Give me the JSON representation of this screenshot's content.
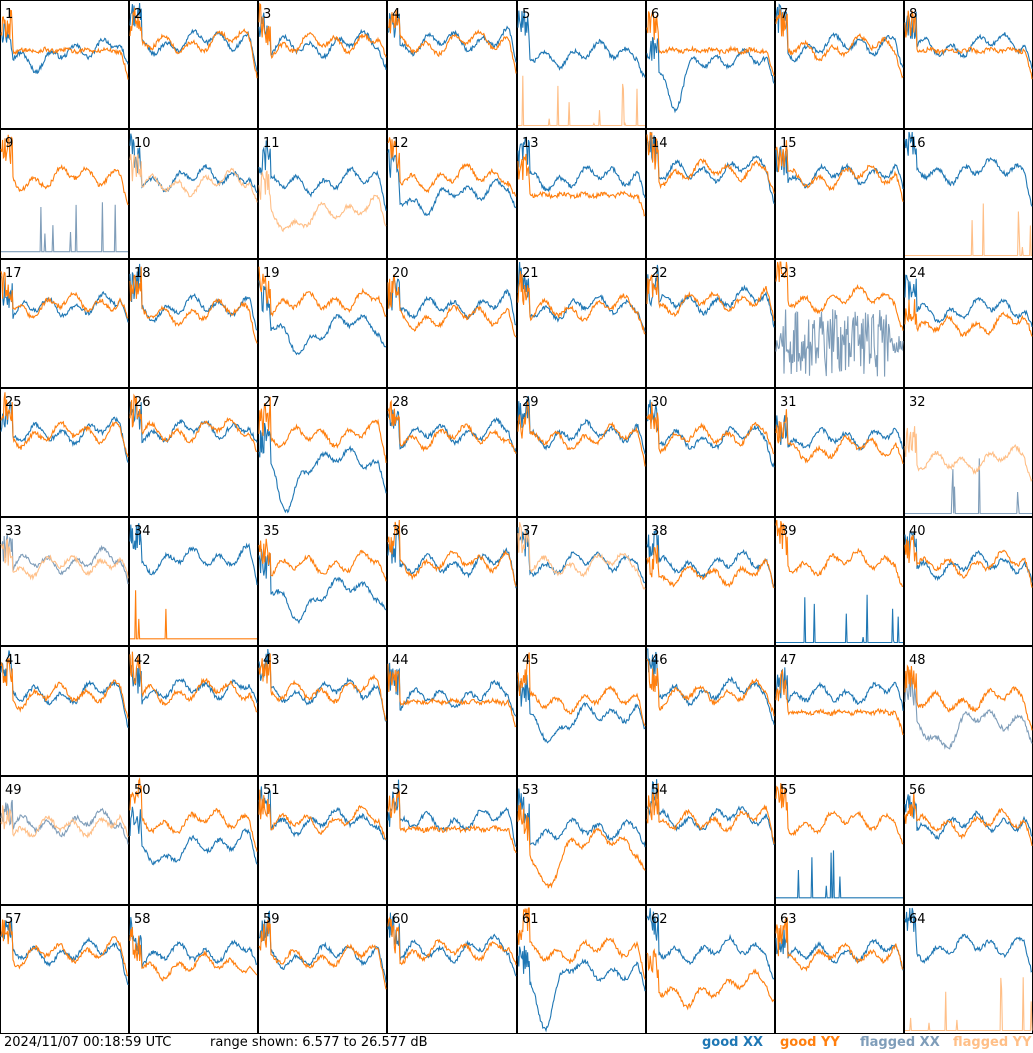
{
  "chart_data": {
    "type": "line",
    "grid_layout": {
      "rows": 8,
      "cols": 8
    },
    "timestamp": "2024/11/07 00:18:59 UTC",
    "range_text": "range shown: 6.577 to 26.577 dB",
    "ylim": [
      6.577,
      26.577
    ],
    "legend": [
      {
        "label": "good XX",
        "color": "#1f77b4"
      },
      {
        "label": "good YY",
        "color": "#ff7f0e"
      },
      {
        "label": "flagged XX",
        "color": "#7f9db9"
      },
      {
        "label": "flagged YY",
        "color": "#ffbf87"
      }
    ],
    "colors": {
      "good_xx": "#1f77b4",
      "good_yy": "#ff7f0e",
      "flagged_xx": "#7f9db9",
      "flagged_yy": "#ffbf87"
    },
    "panels": [
      {
        "label": "1",
        "xx": {
          "shape": "dip",
          "level": 0.65,
          "flag": false
        },
        "yy": {
          "shape": "flat",
          "level": 0.62,
          "flag": false
        }
      },
      {
        "label": "2",
        "xx": {
          "shape": "normal",
          "level": 0.65,
          "flag": false
        },
        "yy": {
          "shape": "normal",
          "level": 0.64,
          "flag": false
        }
      },
      {
        "label": "3",
        "xx": {
          "shape": "normal",
          "level": 0.62,
          "flag": false
        },
        "yy": {
          "shape": "normal",
          "level": 0.64,
          "flag": false
        }
      },
      {
        "label": "4",
        "xx": {
          "shape": "normal",
          "level": 0.65,
          "flag": false
        },
        "yy": {
          "shape": "normal",
          "level": 0.64,
          "flag": false
        }
      },
      {
        "label": "5",
        "xx": {
          "shape": "normal",
          "level": 0.55,
          "flag": false
        },
        "yy": {
          "shape": "spikes",
          "level": 0.02,
          "flag": true
        }
      },
      {
        "label": "6",
        "xx": {
          "shape": "deepdip",
          "level": 0.5,
          "flag": false
        },
        "yy": {
          "shape": "flat",
          "level": 0.62,
          "flag": false
        }
      },
      {
        "label": "7",
        "xx": {
          "shape": "normal",
          "level": 0.62,
          "flag": false
        },
        "yy": {
          "shape": "normal",
          "level": 0.6,
          "flag": false
        }
      },
      {
        "label": "8",
        "xx": {
          "shape": "normal",
          "level": 0.62,
          "flag": false
        },
        "yy": {
          "shape": "flat",
          "level": 0.62,
          "flag": false
        }
      },
      {
        "label": "9",
        "xx": {
          "shape": "spikes",
          "level": 0.05,
          "flag": true
        },
        "yy": {
          "shape": "normal",
          "level": 0.6,
          "flag": false
        }
      },
      {
        "label": "10",
        "xx": {
          "shape": "normal",
          "level": 0.6,
          "flag": false
        },
        "yy": {
          "shape": "normal",
          "level": 0.55,
          "flag": true
        }
      },
      {
        "label": "11",
        "xx": {
          "shape": "normal",
          "level": 0.56,
          "flag": false
        },
        "yy": {
          "shape": "dip",
          "level": 0.4,
          "flag": true
        }
      },
      {
        "label": "12",
        "xx": {
          "shape": "dip",
          "level": 0.55,
          "flag": false
        },
        "yy": {
          "shape": "normal",
          "level": 0.6,
          "flag": false
        }
      },
      {
        "label": "13",
        "xx": {
          "shape": "normal",
          "level": 0.6,
          "flag": false
        },
        "yy": {
          "shape": "flat",
          "level": 0.5,
          "flag": false
        }
      },
      {
        "label": "14",
        "xx": {
          "shape": "normal",
          "level": 0.65,
          "flag": false
        },
        "yy": {
          "shape": "normal",
          "level": 0.65,
          "flag": false
        }
      },
      {
        "label": "15",
        "xx": {
          "shape": "normal",
          "level": 0.62,
          "flag": false
        },
        "yy": {
          "shape": "normal",
          "level": 0.6,
          "flag": false
        }
      },
      {
        "label": "16",
        "xx": {
          "shape": "normal",
          "level": 0.65,
          "flag": false
        },
        "yy": {
          "shape": "spikes",
          "level": 0.02,
          "flag": true
        }
      },
      {
        "label": "17",
        "xx": {
          "shape": "normal",
          "level": 0.6,
          "flag": false
        },
        "yy": {
          "shape": "normal",
          "level": 0.62,
          "flag": false
        }
      },
      {
        "label": "18",
        "xx": {
          "shape": "normal",
          "level": 0.6,
          "flag": false
        },
        "yy": {
          "shape": "normal",
          "level": 0.55,
          "flag": false
        }
      },
      {
        "label": "19",
        "xx": {
          "shape": "dip",
          "level": 0.5,
          "flag": false
        },
        "yy": {
          "shape": "normal",
          "level": 0.64,
          "flag": false
        }
      },
      {
        "label": "20",
        "xx": {
          "shape": "normal",
          "level": 0.6,
          "flag": false
        },
        "yy": {
          "shape": "normal",
          "level": 0.52,
          "flag": false
        }
      },
      {
        "label": "21",
        "xx": {
          "shape": "normal",
          "level": 0.6,
          "flag": false
        },
        "yy": {
          "shape": "normal",
          "level": 0.58,
          "flag": false
        }
      },
      {
        "label": "22",
        "xx": {
          "shape": "normal",
          "level": 0.64,
          "flag": false
        },
        "yy": {
          "shape": "normal",
          "level": 0.64,
          "flag": false
        }
      },
      {
        "label": "23",
        "xx": {
          "shape": "noisy",
          "level": 0.35,
          "flag": true
        },
        "yy": {
          "shape": "normal",
          "level": 0.66,
          "flag": false
        }
      },
      {
        "label": "24",
        "xx": {
          "shape": "normal",
          "level": 0.58,
          "flag": false
        },
        "yy": {
          "shape": "normal",
          "level": 0.45,
          "flag": false
        }
      },
      {
        "label": "25",
        "xx": {
          "shape": "normal",
          "level": 0.62,
          "flag": false
        },
        "yy": {
          "shape": "normal",
          "level": 0.62,
          "flag": false
        }
      },
      {
        "label": "26",
        "xx": {
          "shape": "normal",
          "level": 0.65,
          "flag": false
        },
        "yy": {
          "shape": "normal",
          "level": 0.64,
          "flag": false
        }
      },
      {
        "label": "27",
        "xx": {
          "shape": "deepdip",
          "level": 0.4,
          "flag": false
        },
        "yy": {
          "shape": "normal",
          "level": 0.6,
          "flag": false
        }
      },
      {
        "label": "28",
        "xx": {
          "shape": "normal",
          "level": 0.62,
          "flag": false
        },
        "yy": {
          "shape": "normal",
          "level": 0.6,
          "flag": false
        }
      },
      {
        "label": "29",
        "xx": {
          "shape": "normal",
          "level": 0.62,
          "flag": false
        },
        "yy": {
          "shape": "normal",
          "level": 0.58,
          "flag": false
        }
      },
      {
        "label": "30",
        "xx": {
          "shape": "normal",
          "level": 0.58,
          "flag": false
        },
        "yy": {
          "shape": "normal",
          "level": 0.6,
          "flag": false
        }
      },
      {
        "label": "31",
        "xx": {
          "shape": "normal",
          "level": 0.58,
          "flag": false
        },
        "yy": {
          "shape": "normal",
          "level": 0.5,
          "flag": false
        }
      },
      {
        "label": "32",
        "xx": {
          "shape": "spikes",
          "level": 0.02,
          "flag": true
        },
        "yy": {
          "shape": "normal",
          "level": 0.4,
          "flag": true
        }
      },
      {
        "label": "33",
        "xx": {
          "shape": "normal",
          "level": 0.62,
          "flag": true
        },
        "yy": {
          "shape": "normal",
          "level": 0.6,
          "flag": true
        }
      },
      {
        "label": "34",
        "xx": {
          "shape": "normal",
          "level": 0.65,
          "flag": false
        },
        "yy": {
          "shape": "spikes",
          "level": 0.05,
          "flag": false
        }
      },
      {
        "label": "35",
        "xx": {
          "shape": "dip",
          "level": 0.45,
          "flag": false
        },
        "yy": {
          "shape": "normal",
          "level": 0.6,
          "flag": false
        }
      },
      {
        "label": "36",
        "xx": {
          "shape": "normal",
          "level": 0.6,
          "flag": false
        },
        "yy": {
          "shape": "normal",
          "level": 0.62,
          "flag": false
        }
      },
      {
        "label": "37",
        "xx": {
          "shape": "normal",
          "level": 0.62,
          "flag": false
        },
        "yy": {
          "shape": "normal",
          "level": 0.6,
          "flag": true
        }
      },
      {
        "label": "38",
        "xx": {
          "shape": "normal",
          "level": 0.6,
          "flag": false
        },
        "yy": {
          "shape": "normal",
          "level": 0.52,
          "flag": false
        }
      },
      {
        "label": "39",
        "xx": {
          "shape": "spikes",
          "level": 0.02,
          "flag": false
        },
        "yy": {
          "shape": "normal",
          "level": 0.62,
          "flag": false
        }
      },
      {
        "label": "40",
        "xx": {
          "shape": "normal",
          "level": 0.6,
          "flag": false
        },
        "yy": {
          "shape": "normal",
          "level": 0.6,
          "flag": false
        }
      },
      {
        "label": "41",
        "xx": {
          "shape": "normal",
          "level": 0.6,
          "flag": false
        },
        "yy": {
          "shape": "normal",
          "level": 0.6,
          "flag": false
        }
      },
      {
        "label": "42",
        "xx": {
          "shape": "normal",
          "level": 0.64,
          "flag": false
        },
        "yy": {
          "shape": "normal",
          "level": 0.62,
          "flag": false
        }
      },
      {
        "label": "43",
        "xx": {
          "shape": "normal",
          "level": 0.62,
          "flag": false
        },
        "yy": {
          "shape": "normal",
          "level": 0.62,
          "flag": false
        }
      },
      {
        "label": "44",
        "xx": {
          "shape": "normal",
          "level": 0.58,
          "flag": false
        },
        "yy": {
          "shape": "flat",
          "level": 0.58,
          "flag": false
        }
      },
      {
        "label": "45",
        "xx": {
          "shape": "dip",
          "level": 0.5,
          "flag": false
        },
        "yy": {
          "shape": "normal",
          "level": 0.55,
          "flag": false
        }
      },
      {
        "label": "46",
        "xx": {
          "shape": "normal",
          "level": 0.62,
          "flag": false
        },
        "yy": {
          "shape": "normal",
          "level": 0.6,
          "flag": false
        }
      },
      {
        "label": "47",
        "xx": {
          "shape": "normal",
          "level": 0.6,
          "flag": false
        },
        "yy": {
          "shape": "flat",
          "level": 0.5,
          "flag": false
        }
      },
      {
        "label": "48",
        "xx": {
          "shape": "dip",
          "level": 0.45,
          "flag": true
        },
        "yy": {
          "shape": "normal",
          "level": 0.55,
          "flag": false
        }
      },
      {
        "label": "49",
        "xx": {
          "shape": "normal",
          "level": 0.6,
          "flag": true
        },
        "yy": {
          "shape": "normal",
          "level": 0.58,
          "flag": true
        }
      },
      {
        "label": "50",
        "xx": {
          "shape": "dip",
          "level": 0.5,
          "flag": false
        },
        "yy": {
          "shape": "normal",
          "level": 0.62,
          "flag": false
        }
      },
      {
        "label": "51",
        "xx": {
          "shape": "normal",
          "level": 0.62,
          "flag": false
        },
        "yy": {
          "shape": "normal",
          "level": 0.62,
          "flag": false
        }
      },
      {
        "label": "52",
        "xx": {
          "shape": "normal",
          "level": 0.62,
          "flag": false
        },
        "yy": {
          "shape": "flat",
          "level": 0.6,
          "flag": false
        }
      },
      {
        "label": "53",
        "xx": {
          "shape": "normal",
          "level": 0.55,
          "flag": false
        },
        "yy": {
          "shape": "deepdip",
          "level": 0.45,
          "flag": false
        }
      },
      {
        "label": "54",
        "xx": {
          "shape": "normal",
          "level": 0.64,
          "flag": false
        },
        "yy": {
          "shape": "normal",
          "level": 0.62,
          "flag": false
        }
      },
      {
        "label": "55",
        "xx": {
          "shape": "spikes",
          "level": 0.05,
          "flag": false
        },
        "yy": {
          "shape": "normal",
          "level": 0.62,
          "flag": false
        }
      },
      {
        "label": "56",
        "xx": {
          "shape": "normal",
          "level": 0.6,
          "flag": false
        },
        "yy": {
          "shape": "normal",
          "level": 0.6,
          "flag": false
        }
      },
      {
        "label": "57",
        "xx": {
          "shape": "normal",
          "level": 0.6,
          "flag": false
        },
        "yy": {
          "shape": "normal",
          "level": 0.6,
          "flag": false
        }
      },
      {
        "label": "58",
        "xx": {
          "shape": "normal",
          "level": 0.6,
          "flag": false
        },
        "yy": {
          "shape": "normal",
          "level": 0.5,
          "flag": false
        }
      },
      {
        "label": "59",
        "xx": {
          "shape": "normal",
          "level": 0.58,
          "flag": false
        },
        "yy": {
          "shape": "normal",
          "level": 0.56,
          "flag": false
        }
      },
      {
        "label": "60",
        "xx": {
          "shape": "normal",
          "level": 0.62,
          "flag": false
        },
        "yy": {
          "shape": "normal",
          "level": 0.62,
          "flag": false
        }
      },
      {
        "label": "61",
        "xx": {
          "shape": "deepdip",
          "level": 0.45,
          "flag": false
        },
        "yy": {
          "shape": "normal",
          "level": 0.62,
          "flag": false
        }
      },
      {
        "label": "62",
        "xx": {
          "shape": "normal",
          "level": 0.62,
          "flag": false
        },
        "yy": {
          "shape": "dip",
          "level": 0.4,
          "flag": false
        }
      },
      {
        "label": "63",
        "xx": {
          "shape": "normal",
          "level": 0.6,
          "flag": false
        },
        "yy": {
          "shape": "normal",
          "level": 0.58,
          "flag": false
        }
      },
      {
        "label": "64",
        "xx": {
          "shape": "normal",
          "level": 0.65,
          "flag": false
        },
        "yy": {
          "shape": "spikes",
          "level": 0.02,
          "flag": true
        }
      }
    ]
  }
}
